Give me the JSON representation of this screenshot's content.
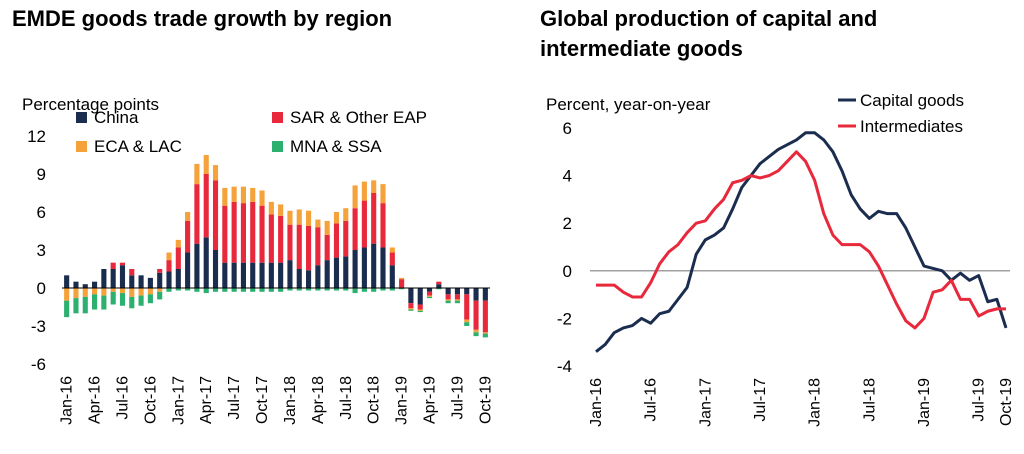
{
  "chart_data": [
    {
      "type": "bar",
      "stacked": true,
      "title": "EMDE goods trade growth by region",
      "ylabel": "Percentage points",
      "ylim": [
        -6,
        12
      ],
      "yticks": [
        -6,
        -3,
        0,
        3,
        6,
        9,
        12
      ],
      "grid": false,
      "legend_position": "top",
      "x_tick_labels": [
        "Jan-16",
        "Apr-16",
        "Jul-16",
        "Oct-16",
        "Jan-17",
        "Apr-17",
        "Jul-17",
        "Oct-17",
        "Jan-18",
        "Apr-18",
        "Jul-18",
        "Oct-18",
        "Jan-19",
        "Apr-19",
        "Jul-19",
        "Oct-19"
      ],
      "categories": [
        "Jan-16",
        "Feb-16",
        "Mar-16",
        "Apr-16",
        "May-16",
        "Jun-16",
        "Jul-16",
        "Aug-16",
        "Sep-16",
        "Oct-16",
        "Nov-16",
        "Dec-16",
        "Jan-17",
        "Feb-17",
        "Mar-17",
        "Apr-17",
        "May-17",
        "Jun-17",
        "Jul-17",
        "Aug-17",
        "Sep-17",
        "Oct-17",
        "Nov-17",
        "Dec-17",
        "Jan-18",
        "Feb-18",
        "Mar-18",
        "Apr-18",
        "May-18",
        "Jun-18",
        "Jul-18",
        "Aug-18",
        "Sep-18",
        "Oct-18",
        "Nov-18",
        "Dec-18",
        "Jan-19",
        "Feb-19",
        "Mar-19",
        "Apr-19",
        "May-19",
        "Jun-19",
        "Jul-19",
        "Aug-19",
        "Sep-19",
        "Oct-19"
      ],
      "series": [
        {
          "name": "China",
          "color": "#1b2d4f",
          "values": [
            1.0,
            0.5,
            0.3,
            0.5,
            1.5,
            1.5,
            1.8,
            1.0,
            1.0,
            0.8,
            1.2,
            1.3,
            1.5,
            2.8,
            3.5,
            4.0,
            3.0,
            2.0,
            2.0,
            2.0,
            2.0,
            2.0,
            2.0,
            2.0,
            2.2,
            1.5,
            1.4,
            1.8,
            2.2,
            2.4,
            2.5,
            3.0,
            3.2,
            3.5,
            3.2,
            1.8,
            0.0,
            -1.2,
            -1.3,
            -0.3,
            0.3,
            -0.5,
            -0.5,
            -0.5,
            -1.0,
            -1.0
          ]
        },
        {
          "name": "SAR & Other EAP",
          "color": "#e8283b",
          "values": [
            0.0,
            0.0,
            0.0,
            0.0,
            0.0,
            0.5,
            0.2,
            0.5,
            0.0,
            0.0,
            0.3,
            0.9,
            1.7,
            2.5,
            4.7,
            5.0,
            5.5,
            4.5,
            4.8,
            4.7,
            4.8,
            4.5,
            3.8,
            3.7,
            2.8,
            3.5,
            3.5,
            3.0,
            2.0,
            2.7,
            2.8,
            3.3,
            3.7,
            4.0,
            3.5,
            1.0,
            0.7,
            -0.4,
            -0.4,
            -0.3,
            0.2,
            -0.4,
            -0.4,
            -2.0,
            -2.3,
            -2.5
          ]
        },
        {
          "name": "ECA & LAC",
          "color": "#f5a23a",
          "values": [
            -1.0,
            -0.8,
            -0.7,
            -0.5,
            -0.6,
            -0.3,
            -0.4,
            -0.7,
            -0.6,
            -0.5,
            -0.3,
            0.6,
            0.6,
            0.7,
            1.6,
            1.5,
            1.2,
            1.4,
            1.2,
            1.3,
            1.1,
            1.2,
            1.0,
            0.9,
            1.1,
            1.2,
            1.2,
            0.6,
            1.1,
            0.9,
            1.0,
            1.8,
            1.5,
            1.0,
            1.5,
            0.4,
            0.1,
            -0.1,
            -0.1,
            -0.1,
            0.0,
            -0.1,
            -0.1,
            -0.2,
            -0.2,
            -0.1
          ]
        },
        {
          "name": "MNA & SSA",
          "color": "#2bb06f",
          "values": [
            -1.3,
            -1.2,
            -1.3,
            -1.2,
            -1.1,
            -1.0,
            -1.0,
            -0.9,
            -0.8,
            -0.7,
            -0.6,
            -0.3,
            -0.2,
            -0.2,
            -0.3,
            -0.4,
            -0.3,
            -0.3,
            -0.3,
            -0.3,
            -0.3,
            -0.3,
            -0.3,
            -0.3,
            -0.2,
            -0.2,
            -0.2,
            -0.2,
            -0.2,
            -0.2,
            -0.2,
            -0.4,
            -0.3,
            -0.3,
            -0.2,
            -0.2,
            -0.1,
            -0.1,
            -0.1,
            -0.1,
            -0.1,
            -0.2,
            -0.2,
            -0.3,
            -0.3,
            -0.3
          ]
        }
      ]
    },
    {
      "type": "line",
      "title": "Global production of capital and intermediate goods",
      "ylabel": "Percent, year-on-year",
      "ylim": [
        -4,
        6
      ],
      "yticks": [
        -4,
        -2,
        0,
        2,
        4,
        6
      ],
      "grid": false,
      "reference_line_at": 0,
      "legend_position": "top-right",
      "x_tick_labels": [
        "Jan-16",
        "Jul-16",
        "Jan-17",
        "Jul-17",
        "Jan-18",
        "Jul-18",
        "Jan-19",
        "Jul-19",
        "Oct-19"
      ],
      "x": [
        "Jan-16",
        "Feb-16",
        "Mar-16",
        "Apr-16",
        "May-16",
        "Jun-16",
        "Jul-16",
        "Aug-16",
        "Sep-16",
        "Oct-16",
        "Nov-16",
        "Dec-16",
        "Jan-17",
        "Feb-17",
        "Mar-17",
        "Apr-17",
        "May-17",
        "Jun-17",
        "Jul-17",
        "Aug-17",
        "Sep-17",
        "Oct-17",
        "Nov-17",
        "Dec-17",
        "Jan-18",
        "Feb-18",
        "Mar-18",
        "Apr-18",
        "May-18",
        "Jun-18",
        "Jul-18",
        "Aug-18",
        "Sep-18",
        "Oct-18",
        "Nov-18",
        "Dec-18",
        "Jan-19",
        "Feb-19",
        "Mar-19",
        "Apr-19",
        "May-19",
        "Jun-19",
        "Jul-19",
        "Aug-19",
        "Sep-19",
        "Oct-19"
      ],
      "series": [
        {
          "name": "Capital goods",
          "color": "#1b2d4f",
          "values": [
            -3.4,
            -3.1,
            -2.6,
            -2.4,
            -2.3,
            -2.0,
            -2.2,
            -1.8,
            -1.7,
            -1.2,
            -0.7,
            0.7,
            1.3,
            1.5,
            1.8,
            2.6,
            3.5,
            4.0,
            4.5,
            4.8,
            5.1,
            5.3,
            5.5,
            5.8,
            5.8,
            5.5,
            5.0,
            4.2,
            3.2,
            2.6,
            2.2,
            2.5,
            2.4,
            2.4,
            1.8,
            1.0,
            0.2,
            0.1,
            0.0,
            -0.4,
            -0.1,
            -0.4,
            -0.2,
            -1.3,
            -1.2,
            -2.4
          ]
        },
        {
          "name": "Intermediates",
          "color": "#e8283b",
          "values": [
            -0.6,
            -0.6,
            -0.6,
            -0.9,
            -1.1,
            -1.1,
            -0.5,
            0.3,
            0.8,
            1.1,
            1.6,
            2.0,
            2.1,
            2.6,
            3.0,
            3.7,
            3.8,
            4.0,
            3.9,
            4.0,
            4.2,
            4.6,
            5.0,
            4.6,
            3.8,
            2.4,
            1.5,
            1.1,
            1.1,
            1.1,
            0.8,
            0.2,
            -0.6,
            -1.4,
            -2.1,
            -2.4,
            -2.0,
            -0.9,
            -0.8,
            -0.4,
            -1.2,
            -1.2,
            -1.9,
            -1.7,
            -1.6,
            -1.6
          ]
        }
      ]
    }
  ]
}
